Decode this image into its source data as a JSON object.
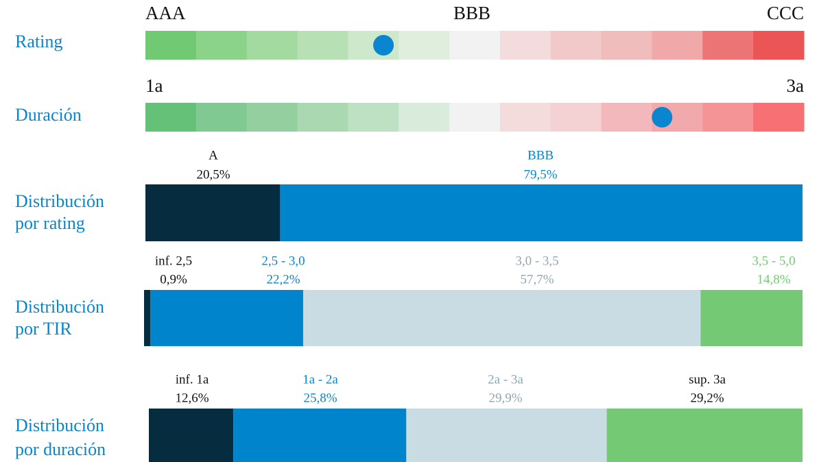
{
  "scales": [
    {
      "label": "Rating",
      "ticks": [
        "AAA",
        "BBB",
        "CCC"
      ],
      "steps": 13,
      "marker": 4.7,
      "marker_color": "#0a85d0",
      "colors": [
        "#72c974",
        "#8ad388",
        "#a2daa0",
        "#b7e0b4",
        "#cde8cb",
        "#dfeedd",
        "#f2f2f2",
        "#f5dcdc",
        "#f2c9c9",
        "#f0bcbc",
        "#f0a8a8",
        "#ec7474",
        "#ec5555"
      ]
    },
    {
      "label": "Duración",
      "ticks": [
        "1a",
        "3a"
      ],
      "steps": 13,
      "marker": 10.2,
      "marker_color": "#0a85d0",
      "colors": [
        "#66c178",
        "#81c993",
        "#93cf9f",
        "#aad8b0",
        "#bee1c4",
        "#d9ecdb",
        "#f2f2f2",
        "#f5dcdc",
        "#f4d2d4",
        "#f3b8bb",
        "#f2a9ac",
        "#f59497",
        "#f77074"
      ]
    }
  ],
  "bars": [
    {
      "label": [
        "Distribución",
        "por rating"
      ],
      "segments": [
        {
          "name": "A",
          "value": 20.5,
          "value_label": "20,5%",
          "color": "#062c40",
          "label_color": "#111111"
        },
        {
          "name": "BBB",
          "value": 79.5,
          "value_label": "79,5%",
          "color": "#0085cc",
          "label_color": "#0a85cc"
        }
      ]
    },
    {
      "label": [
        "Distribución",
        "por TIR"
      ],
      "segments": [
        {
          "name": "inf. 2,5",
          "value": 0.9,
          "value_label": "0,9%",
          "color": "#062c40",
          "label_color": "#111111"
        },
        {
          "name": "2,5 - 3,0",
          "value": 22.2,
          "value_label": "22,2%",
          "color": "#0085cc",
          "label_color": "#0a85cc"
        },
        {
          "name": "3,0 - 3,5",
          "value": 57.7,
          "value_label": "57,7%",
          "color": "#c9dce3",
          "label_color": "#8fa6b3"
        },
        {
          "name": "3,5 - 5,0",
          "value": 14.8,
          "value_label": "14,8%",
          "color": "#74c974",
          "label_color": "#74c974"
        }
      ]
    },
    {
      "label": [
        "Distribución",
        "por duración"
      ],
      "segments": [
        {
          "name": "inf. 1a",
          "value": 12.6,
          "value_label": "12,6%",
          "color": "#062c40",
          "label_color": "#111111"
        },
        {
          "name": "1a - 2a",
          "value": 25.8,
          "value_label": "25,8%",
          "color": "#0085cc",
          "label_color": "#0a85cc"
        },
        {
          "name": "2a - 3a",
          "value": 29.9,
          "value_label": "29,9%",
          "color": "#c9dce3",
          "label_color": "#8fa6b3"
        },
        {
          "name": "sup. 3a",
          "value": 29.2,
          "value_label": "29,2%",
          "color": "#74c974",
          "label_color": "#111111"
        }
      ]
    }
  ]
}
